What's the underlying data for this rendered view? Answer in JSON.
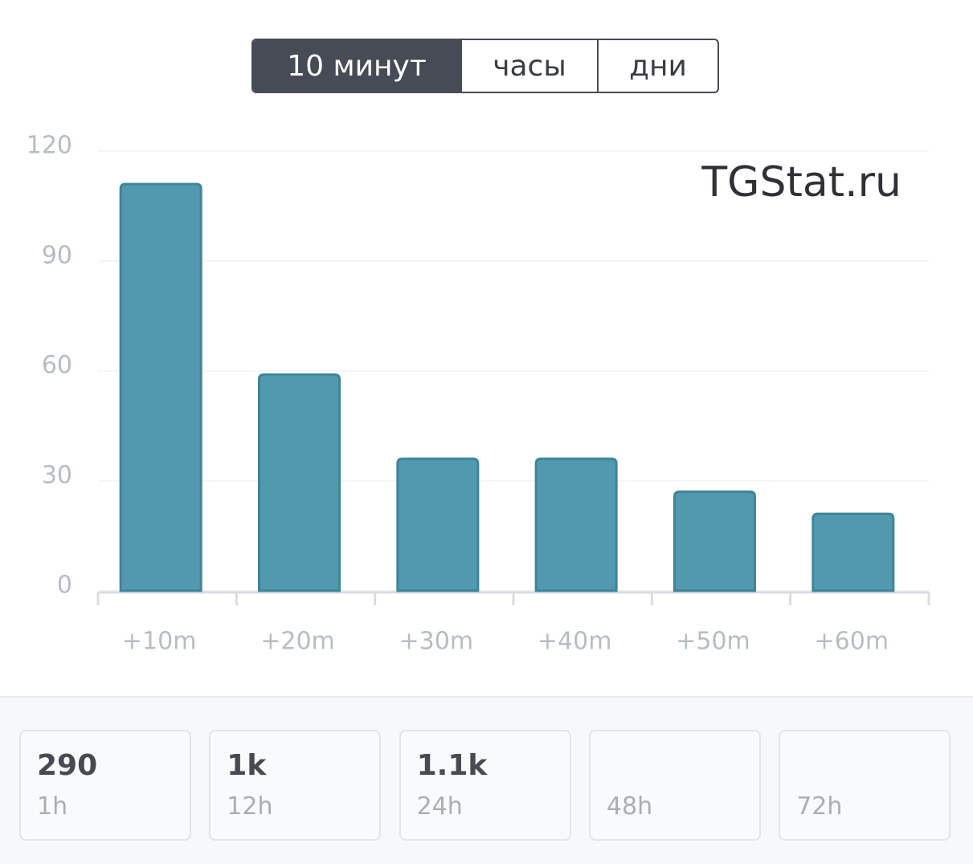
{
  "tabs": {
    "items": [
      "10 минут",
      "часы",
      "дни"
    ],
    "active": 0
  },
  "chart_data": {
    "type": "bar",
    "annotation": "TGStat.ru",
    "categories": [
      "+10m",
      "+20m",
      "+30m",
      "+40m",
      "+50m",
      "+60m"
    ],
    "values": [
      111,
      59,
      36,
      36,
      27,
      21
    ],
    "color": "#5299b0",
    "ylim": [
      0,
      120
    ],
    "yticks": [
      0,
      30,
      60,
      90,
      120
    ],
    "grid": true
  },
  "stats": [
    {
      "value": "290",
      "label": "1h"
    },
    {
      "value": "1k",
      "label": "12h"
    },
    {
      "value": "1.1k",
      "label": "24h"
    },
    {
      "label": "48h"
    },
    {
      "label": "72h"
    }
  ]
}
